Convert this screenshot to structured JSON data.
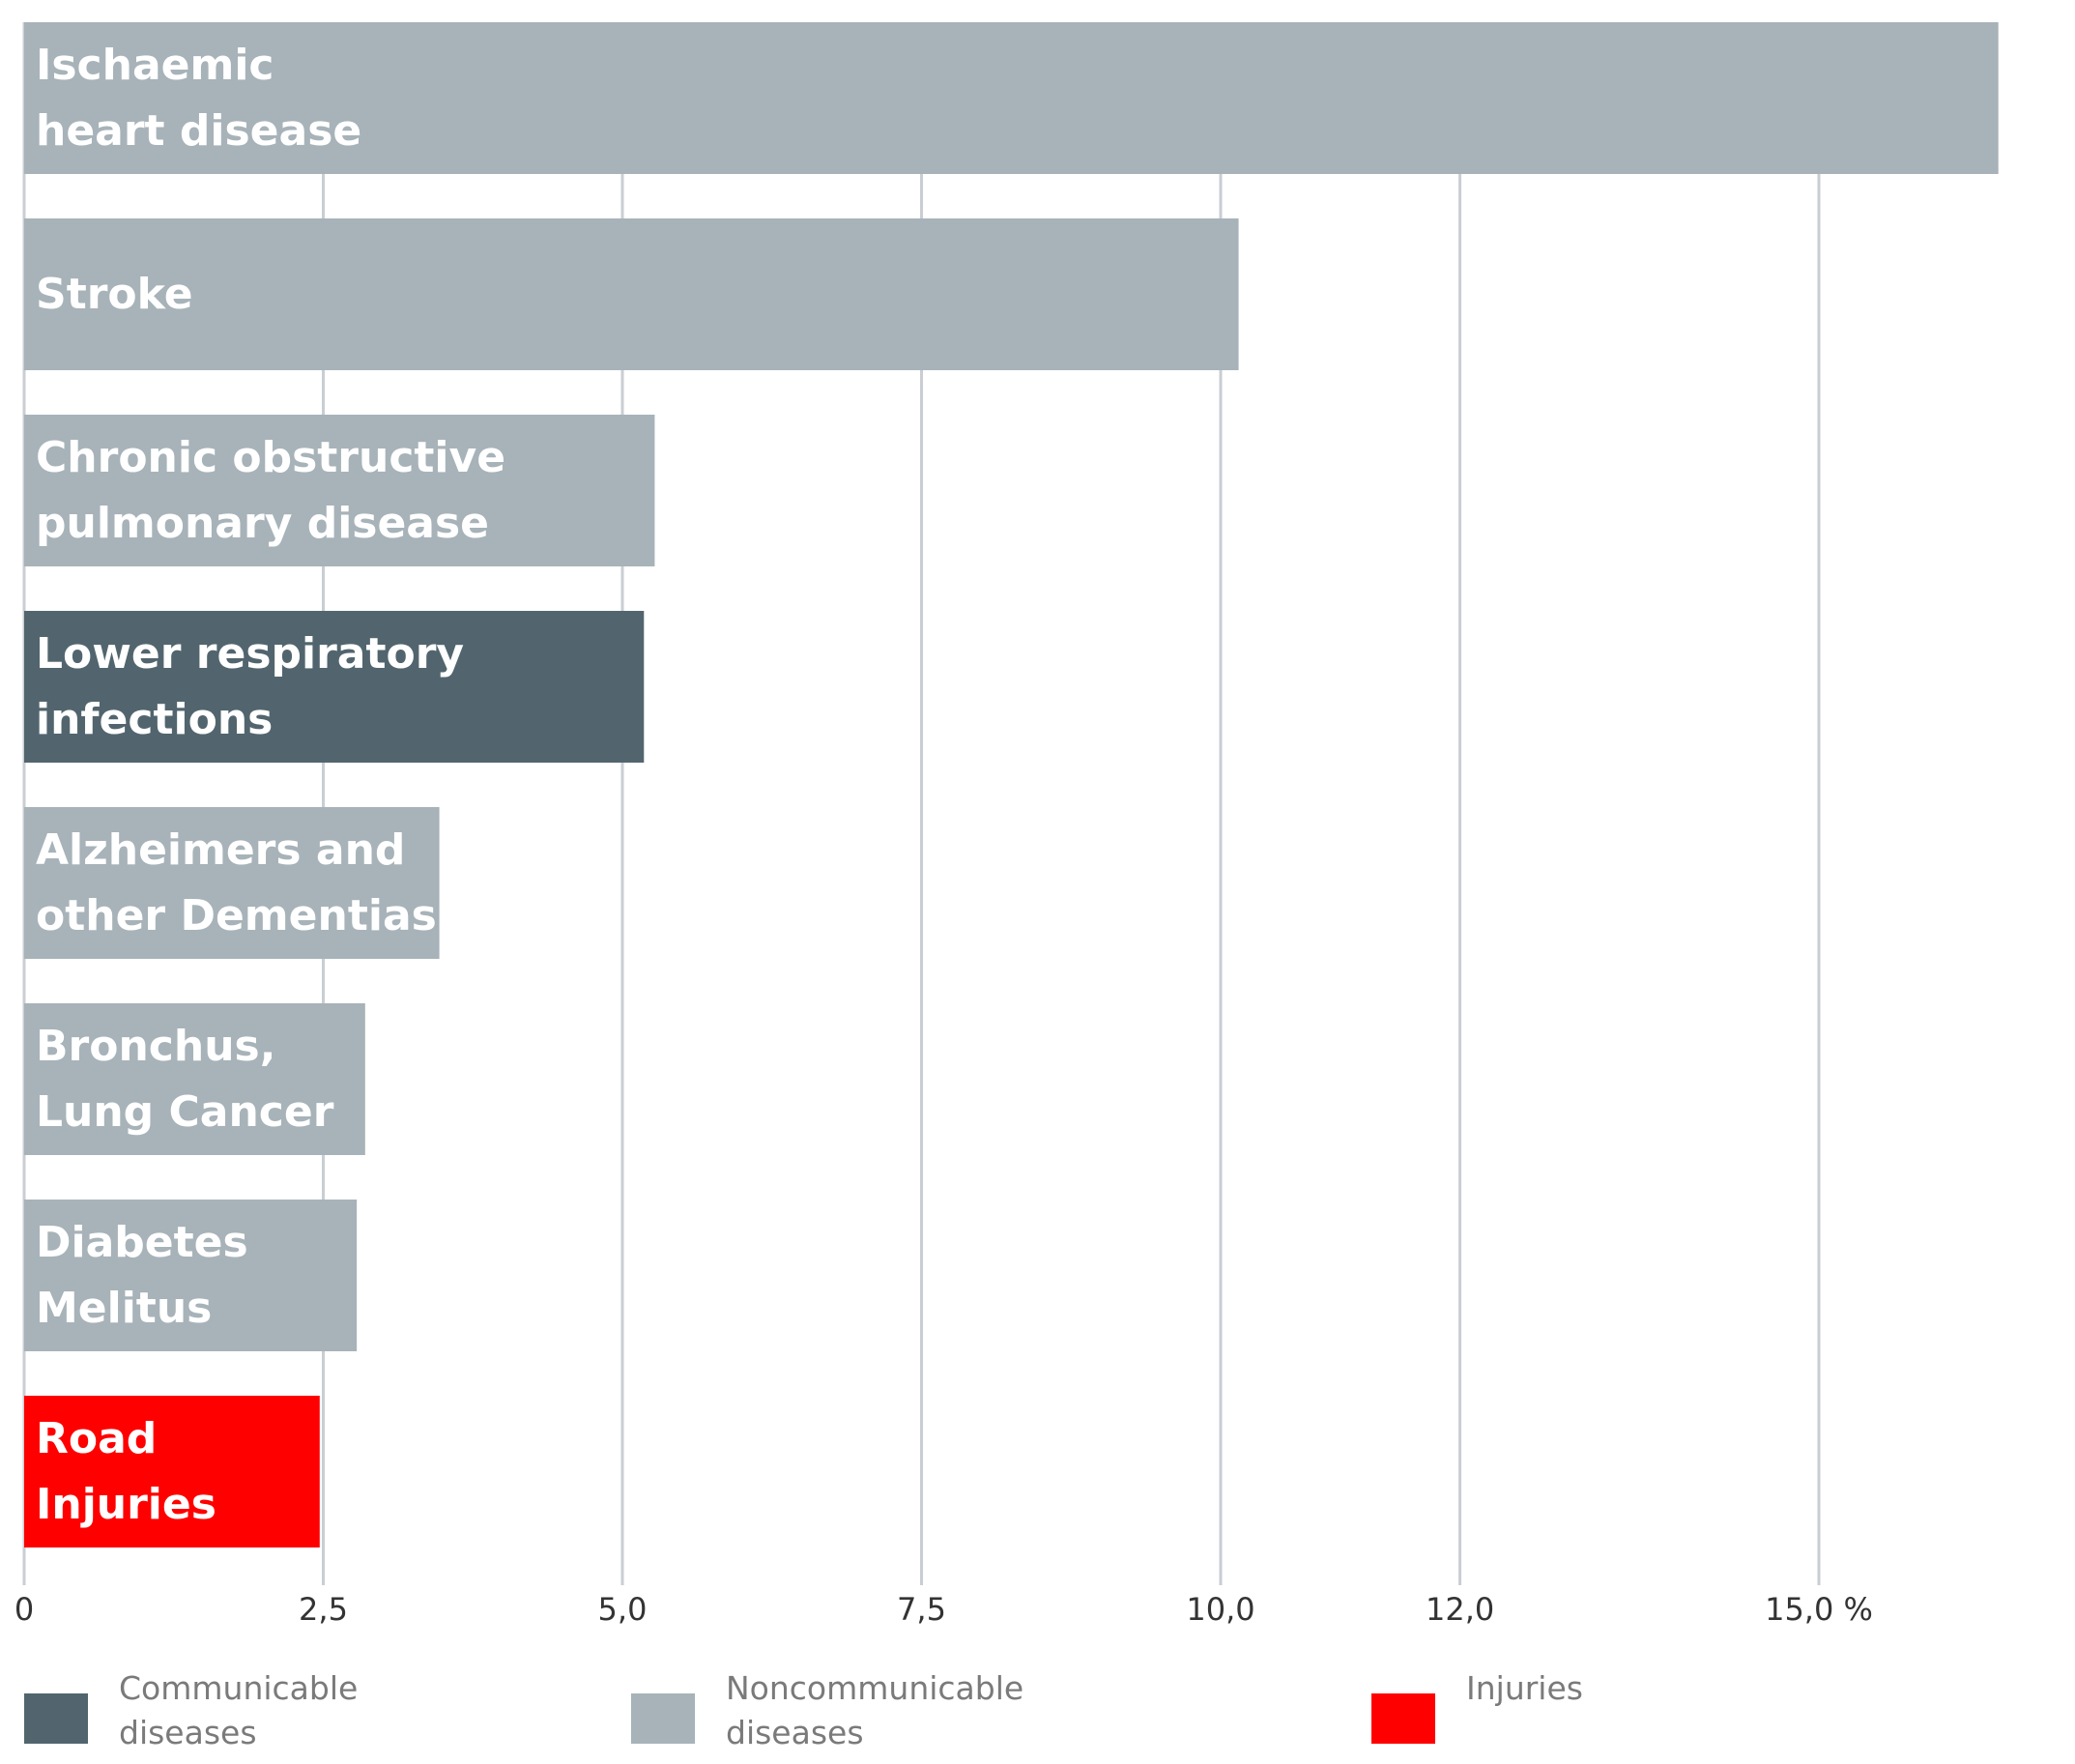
{
  "chart_data": {
    "type": "barh",
    "categories": [
      "Ischaemic\nheart disease",
      "Stroke",
      "Chronic obstructive\npulmonary disease",
      "Lower respiratory\ninfections",
      "Alzheimers and\nother Dementias",
      "Bronchus,\nLung Cancer",
      "Diabetes\nMelitus",
      "Road\nInjuries"
    ],
    "values": [
      16.5,
      10.15,
      5.27,
      5.18,
      3.47,
      2.85,
      2.78,
      2.47
    ],
    "colors": [
      "#a7b3b9",
      "#a7b3b9",
      "#a7b3b9",
      "#52656e",
      "#a7b3b9",
      "#a7b3b9",
      "#a7b3b9",
      "#ff0000"
    ],
    "xlim": [
      0,
      17.3
    ],
    "xticks": [
      0,
      {
        "value": 2.5,
        "label": "2,5"
      },
      {
        "value": 5,
        "label": "5,0"
      },
      {
        "value": 7.5,
        "label": "7,5"
      },
      {
        "value": 10,
        "label": "10,0"
      },
      {
        "value": 12,
        "label": "12,0"
      },
      {
        "value": 15,
        "label": "15,0 %"
      }
    ],
    "grid": true,
    "legend": [
      {
        "name": "Communicable\ndiseases",
        "color": "#52656e"
      },
      {
        "name": "Noncommunicable\ndiseases",
        "color": "#a7b3b9"
      },
      {
        "name": "Injuries",
        "color": "#ff0000"
      }
    ]
  }
}
